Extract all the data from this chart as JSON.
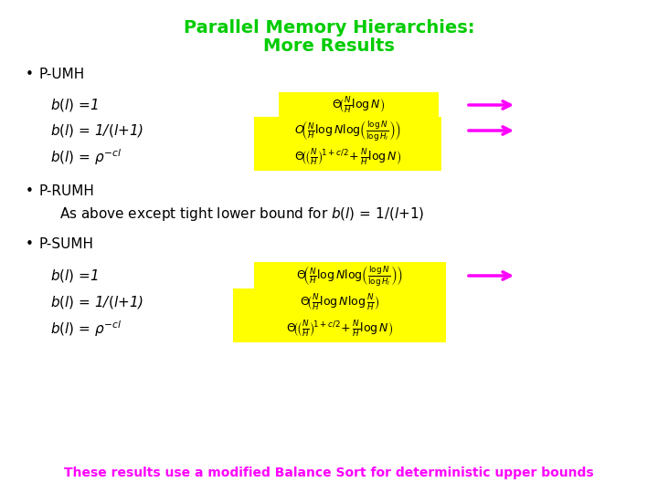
{
  "title_line1": "Parallel Memory Hierarchies:",
  "title_line2": "More Results",
  "title_color": "#00CC00",
  "title_fontsize": 15,
  "bg_color": "#FFFFFF",
  "formula_bg": "#FFFF00",
  "arrow_color": "#FF00FF",
  "bottom_text_color": "#FF00FF",
  "bottom_text": "These results use a modified Balance Sort for deterministic upper bounds",
  "pumh_label1": "$b(l)$ =1",
  "pumh_label2": "$b(l)$ = 1/$(l$+1)",
  "pumh_label3": "$b(l)$ = $\\rho^{-cl}$",
  "pumh_formula1": "$\\Theta\\!\\left(\\frac{N}{H}\\log N\\right)$",
  "pumh_formula2": "$O\\!\\left(\\frac{N}{H}\\log N\\log\\!\\left(\\frac{\\log N}{\\log H_l}\\right)\\right)$",
  "pumh_formula3": "$\\Theta\\!\\left(\\!\\left(\\frac{N}{H}\\right)^{\\!1+c/2}\\!+\\frac{N}{H}\\log N\\right)$",
  "prumh_text": "As above except tight lower bound for $b(l)$ = 1/$(l$+1)",
  "psumh_label1": "$b(l)$ =1",
  "psumh_label2": "$b(l)$ = 1/$(l$+1)",
  "psumh_label3": "$b(l)$ = $\\rho^{-cl}$",
  "psumh_formula1": "$\\Theta\\!\\left(\\frac{N}{H}\\log N\\log\\!\\left(\\frac{\\log N}{\\log H_l}\\right)\\right)$",
  "psumh_formula2": "$\\Theta\\!\\left(\\frac{N}{H}\\log N\\log\\frac{N}{H}\\right)$",
  "psumh_formula3": "$\\Theta\\!\\left(\\!\\left(\\frac{N}{H}\\right)^{\\!1+c/2}\\!+\\frac{N}{H}\\log N\\right)$"
}
